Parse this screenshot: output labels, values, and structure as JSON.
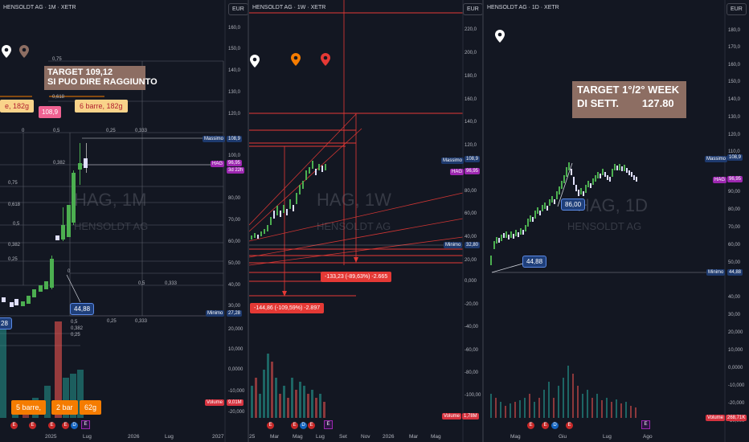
{
  "panes": [
    {
      "title": "HENSOLDT AG · 1M · XETR",
      "currency": "EUR",
      "watermark_symbol": "HAG, 1M",
      "watermark_name": "HENSOLDT AG",
      "y_axis": [
        "160,0",
        "150,0",
        "140,0",
        "130,0",
        "120,0",
        "110,0",
        "100,0",
        "90,00",
        "80,00",
        "70,00",
        "60,00",
        "50,00",
        "40,00",
        "30,00",
        "20,000",
        "10,000",
        "0,0000",
        "-10,000",
        "-20,000"
      ],
      "badges": {
        "massimo_label": "Massimo",
        "massimo": "108,9",
        "hag_label": "HAG",
        "hag": "96,95",
        "countdown": "3d 22h",
        "minimo_label": "Minimo",
        "minimo": "27,28",
        "volume_label": "Volume",
        "volume": "9,01M"
      },
      "x_axis": [
        "2025",
        "Lug",
        "2026",
        "Lug",
        "2027"
      ],
      "note_target": "TARGET 109,12",
      "note_target2": "SI PUO DIRE RAGGIUNTO",
      "box_108": "108,9",
      "box_6barre": "6 barre, 182g",
      "box_left": "e, 182g",
      "box_5barre": "5 barre,",
      "box_2bar": "2 bar",
      "box_62g": "62g",
      "price_4488": "44,88",
      "price_left": "28",
      "fib_labels": [
        "0,75",
        "0,618",
        "0,5",
        "0,382",
        "0,25",
        "0,5",
        "0,333",
        "0,75",
        "0,618",
        "0,5",
        "0,382",
        "0,25",
        "0,5",
        "0,333",
        "0,25",
        "0,5",
        "0,333",
        "0,5",
        "0,382",
        "0,25",
        "0",
        "0"
      ],
      "events": [
        "E",
        "E",
        "E",
        "E",
        "D",
        "E"
      ]
    },
    {
      "title": "HENSOLDT AG · 1W · XETR",
      "currency": "EUR",
      "watermark_symbol": "HAG, 1W",
      "watermark_name": "HENSOLDT AG",
      "y_axis": [
        "220,0",
        "200,0",
        "180,0",
        "160,0",
        "140,0",
        "120,0",
        "100,0",
        "80,00",
        "60,00",
        "40,00",
        "20,00",
        "0,000",
        "-20,00",
        "-40,00",
        "-60,00",
        "-80,00",
        "-100,00",
        "-120,00"
      ],
      "badges": {
        "massimo_label": "Massimo",
        "massimo": "108,9",
        "hag_label": "HAG",
        "hag": "96,95",
        "minimo_label": "Minimo",
        "minimo": "32,80",
        "volume_label": "Volume",
        "volume": "1,78M"
      },
      "x_axis": [
        "25",
        "Mar",
        "Mag",
        "Lug",
        "Set",
        "Nov",
        "2026",
        "Mar",
        "Mag"
      ],
      "measure_1": "-133,23 (-89,63%) -2.665",
      "measure_2": "-144,86 (-109,59%) -2.897",
      "events": [
        "E",
        "E",
        "D",
        "E",
        "E"
      ]
    },
    {
      "title": "HENSOLDT AG · 1D · XETR",
      "currency": "EUR",
      "watermark_symbol": "HAG, 1D",
      "watermark_name": "HENSOLDT AG",
      "y_axis": [
        "180,0",
        "170,0",
        "160,0",
        "150,0",
        "140,0",
        "130,0",
        "120,0",
        "110,0",
        "100,0",
        "90,00",
        "80,00",
        "70,00",
        "60,00",
        "50,00",
        "40,00",
        "30,00",
        "20,000",
        "10,000",
        "0,0000",
        "-10,000",
        "-20,000",
        "-30,000"
      ],
      "badges": {
        "massimo_label": "Massimo",
        "massimo": "108,9",
        "hag_label": "HAG",
        "hag": "96,95",
        "minimo_label": "Minimo",
        "minimo": "44,88",
        "volume_label": "Volume",
        "volume": "268,71K"
      },
      "x_axis": [
        "Mag",
        "Giu",
        "Lug",
        "Ago"
      ],
      "note_target": "TARGET 1°/2° WEEK",
      "note_target2": "DI SETT.        127.80",
      "price_86": "86,00",
      "price_4488": "44,88",
      "events": [
        "E",
        "E",
        "D",
        "E",
        "E"
      ]
    }
  ],
  "colors": {
    "bg": "#131722",
    "up": "#26a69a",
    "down": "#ef5350",
    "candle_up": "#4caf50",
    "accent_red": "#e53935",
    "purple": "#9c27b0"
  }
}
